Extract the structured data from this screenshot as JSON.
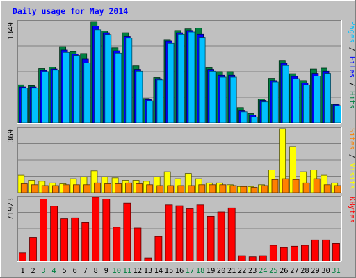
{
  "chart_data": {
    "type": "bar",
    "title": "Daily usage for May 2014",
    "x": [
      "1",
      "2",
      "3",
      "4",
      "5",
      "6",
      "7",
      "8",
      "9",
      "10",
      "11",
      "12",
      "13",
      "14",
      "15",
      "16",
      "17",
      "18",
      "19",
      "20",
      "21",
      "22",
      "23",
      "24",
      "25",
      "26",
      "27",
      "28",
      "29",
      "30",
      "31"
    ],
    "weekend_days": [
      "3",
      "4",
      "10",
      "11",
      "17",
      "18",
      "24",
      "25",
      "31"
    ],
    "panels": [
      {
        "name": "pages-files-hits",
        "ymax_label": "1349",
        "ymax": 1349,
        "legend": [
          {
            "text": "Pages",
            "color": "#00c0ff"
          },
          {
            "text": " / ",
            "color": "#000000"
          },
          {
            "text": "Files",
            "color": "#0000ff"
          },
          {
            "text": " / ",
            "color": "#000000"
          },
          {
            "text": "Hits",
            "color": "#008040"
          }
        ],
        "series": [
          {
            "name": "Hits",
            "color": "#008040",
            "values": [
              505,
              495,
              725,
              745,
              1015,
              950,
              925,
              1349,
              1225,
              1000,
              1200,
              760,
              325,
              605,
              1110,
              1230,
              1250,
              1260,
              735,
              685,
              685,
              205,
              125,
              320,
              595,
              825,
              655,
              565,
              720,
              730,
              255
            ]
          },
          {
            "name": "Files",
            "color": "#0000ff",
            "values": [
              480,
              480,
              700,
              720,
              970,
              920,
              850,
              1290,
              1200,
              960,
              1150,
              715,
              310,
              590,
              1090,
              1200,
              1230,
              1180,
              715,
              635,
              635,
              170,
              105,
              300,
              565,
              795,
              620,
              530,
              660,
              690,
              245
            ]
          },
          {
            "name": "Pages",
            "color": "#00c0ff",
            "values": [
              465,
              465,
              685,
              705,
              940,
              900,
              800,
              1240,
              1175,
              930,
              1130,
              690,
              295,
              575,
              1060,
              1180,
              1210,
              1140,
              690,
              610,
              610,
              150,
              80,
              280,
              545,
              765,
              590,
              505,
              625,
              660,
              230
            ]
          }
        ]
      },
      {
        "name": "sites-visits",
        "ymax_label": "369",
        "ymax": 369,
        "legend": [
          {
            "text": "Sites",
            "color": "#ff8000"
          },
          {
            "text": " / ",
            "color": "#000000"
          },
          {
            "text": "Visits",
            "color": "#ffff00"
          }
        ],
        "series": [
          {
            "name": "Visits",
            "color": "#ffff00",
            "values": [
              100,
              70,
              65,
              55,
              50,
              80,
              90,
              125,
              90,
              85,
              70,
              70,
              65,
              90,
              120,
              80,
              110,
              80,
              55,
              55,
              45,
              35,
              35,
              45,
              130,
              369,
              265,
              120,
              130,
              100,
              55
            ]
          },
          {
            "name": "Sites",
            "color": "#ff8000",
            "values": [
              50,
              45,
              40,
              40,
              45,
              45,
              45,
              55,
              50,
              50,
              55,
              50,
              45,
              40,
              40,
              40,
              40,
              45,
              45,
              45,
              40,
              35,
              30,
              40,
              75,
              80,
              75,
              55,
              80,
              45,
              40
            ]
          }
        ]
      },
      {
        "name": "kbytes",
        "ymax_label": "71923",
        "ymax": 71923,
        "legend": [
          {
            "text": "KBytes",
            "color": "#ff0000"
          }
        ],
        "series": [
          {
            "name": "KBytes",
            "color": "#ff0000",
            "values": [
              9500,
              27000,
              70000,
              62000,
              48000,
              49000,
              43500,
              72000,
              70000,
              38500,
              65500,
              37500,
              3800,
              28000,
              63500,
              62500,
              59000,
              63500,
              50500,
              55500,
              60000,
              6200,
              4900,
              6200,
              18000,
              15500,
              17000,
              18000,
              24000,
              24000,
              20000
            ]
          }
        ]
      }
    ]
  }
}
